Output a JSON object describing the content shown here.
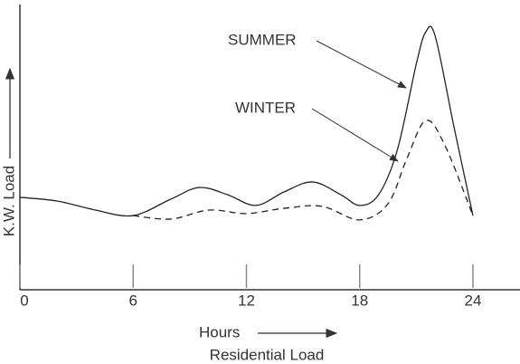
{
  "chart_data": {
    "type": "line",
    "title": "Residential Load",
    "x_label": "Hours",
    "y_label": "K.W. Load",
    "xlim": [
      0,
      24
    ],
    "xticks": [
      0,
      6,
      12,
      18,
      24
    ],
    "ylim": [
      0,
      100
    ],
    "series": [
      {
        "name": "SUMMER",
        "color": "#222222",
        "style": "solid",
        "x": [
          0,
          2,
          4,
          6,
          8,
          9.5,
          11,
          12.5,
          14,
          15.5,
          17,
          18,
          19,
          20,
          21,
          21.5,
          22,
          23,
          24
        ],
        "values": [
          31.9,
          30.6,
          27.5,
          25.6,
          31.3,
          35.3,
          32.8,
          29.1,
          33.8,
          37.2,
          32.8,
          29.1,
          32.8,
          48.4,
          78,
          89,
          87.5,
          56,
          25.6
        ]
      },
      {
        "name": "WINTER",
        "color": "#222222",
        "style": "dashed",
        "x": [
          6,
          8,
          10,
          12,
          14,
          16,
          18,
          19.5,
          20.5,
          21.5,
          22.5,
          24
        ],
        "values": [
          25.6,
          24.4,
          27.5,
          26.3,
          28.1,
          28.8,
          24.1,
          29.7,
          45.3,
          58.4,
          50,
          25.6
        ]
      }
    ]
  }
}
